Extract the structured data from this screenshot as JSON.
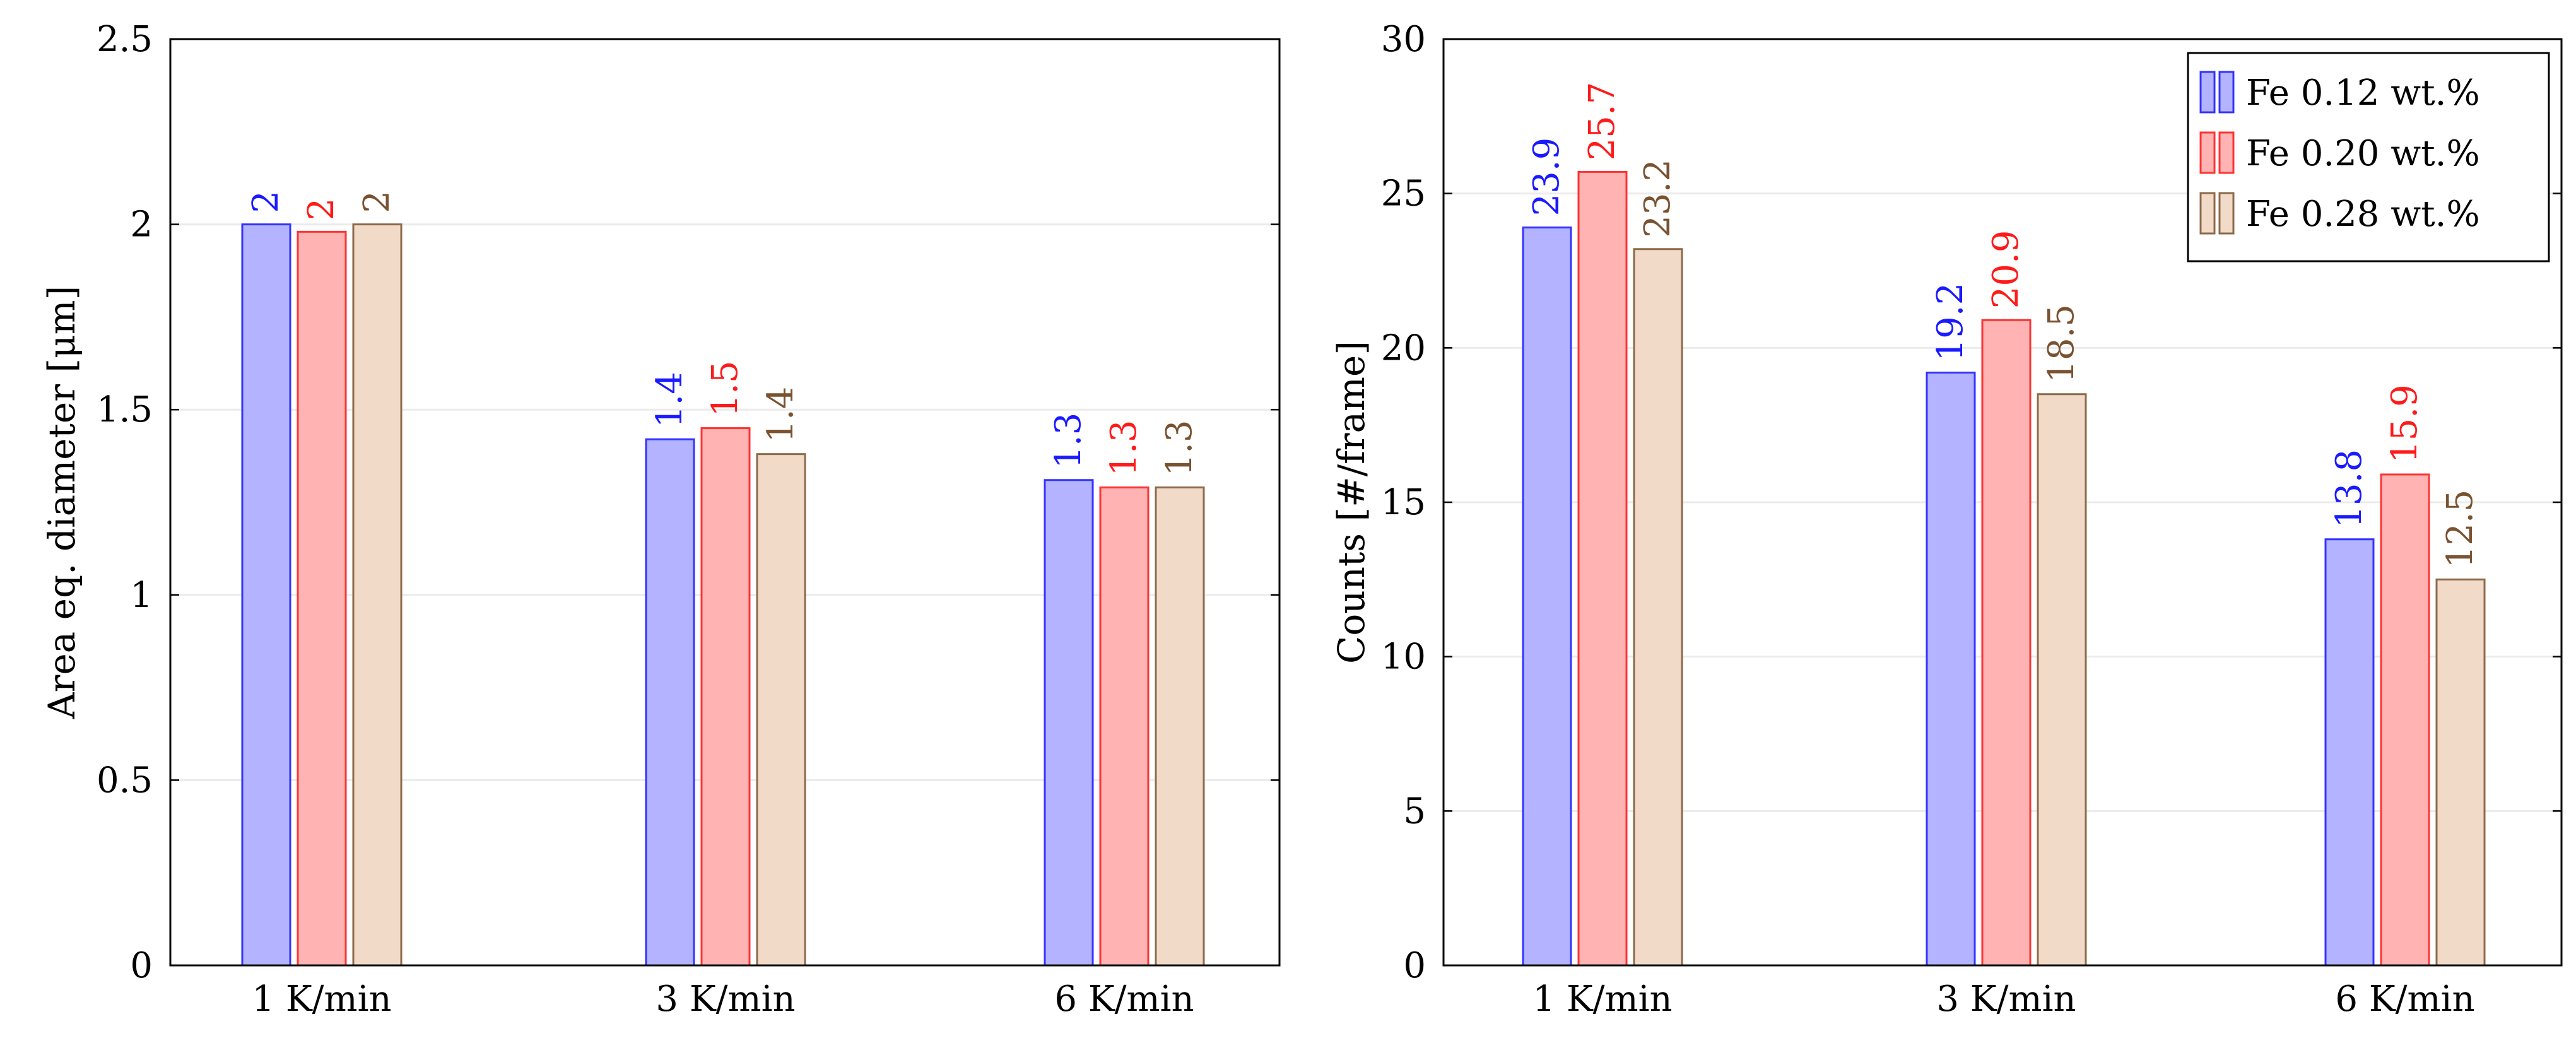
{
  "chart_data": [
    {
      "type": "bar",
      "title": "",
      "xlabel": "",
      "ylabel": "Area eq. diameter [μm]",
      "categories": [
        "1 K/min",
        "3 K/min",
        "6 K/min"
      ],
      "ylim": [
        0,
        2.5
      ],
      "yticks": [
        "0",
        "0.5",
        "1",
        "1.5",
        "2",
        "2.5"
      ],
      "grid": true,
      "legend": false,
      "series": [
        {
          "name": "Fe 0.12 wt.%",
          "values": [
            2.0,
            1.42,
            1.31
          ],
          "labels": [
            "2",
            "1.4",
            "1.3"
          ]
        },
        {
          "name": "Fe 0.20 wt.%",
          "values": [
            1.98,
            1.45,
            1.29
          ],
          "labels": [
            "2",
            "1.5",
            "1.3"
          ]
        },
        {
          "name": "Fe 0.28 wt.%",
          "values": [
            2.0,
            1.38,
            1.29
          ],
          "labels": [
            "2",
            "1.4",
            "1.3"
          ]
        }
      ]
    },
    {
      "type": "bar",
      "title": "",
      "xlabel": "",
      "ylabel": "Counts [#/frame]",
      "categories": [
        "1 K/min",
        "3 K/min",
        "6 K/min"
      ],
      "ylim": [
        0,
        30
      ],
      "yticks": [
        "0",
        "5",
        "10",
        "15",
        "20",
        "25",
        "30"
      ],
      "grid": true,
      "legend": true,
      "legend_position": "top-right",
      "series": [
        {
          "name": "Fe 0.12 wt.%",
          "values": [
            23.9,
            19.2,
            13.8
          ],
          "labels": [
            "23.9",
            "19.2",
            "13.8"
          ]
        },
        {
          "name": "Fe 0.20 wt.%",
          "values": [
            25.7,
            20.9,
            15.9
          ],
          "labels": [
            "25.7",
            "20.9",
            "15.9"
          ]
        },
        {
          "name": "Fe 0.28 wt.%",
          "values": [
            23.2,
            18.5,
            12.5
          ],
          "labels": [
            "23.2",
            "18.5",
            "12.5"
          ]
        }
      ]
    }
  ],
  "colors": {
    "series": [
      {
        "fill": "#b3b3ff",
        "stroke": "#3333ff",
        "text": "#1a1aff"
      },
      {
        "fill": "#ffb3b3",
        "stroke": "#ff3333",
        "text": "#ff1a1a"
      },
      {
        "fill": "#f2dac8",
        "stroke": "#8c6a4a",
        "text": "#7a5230"
      }
    ],
    "grid": "#ebebeb",
    "axis": "#000000"
  }
}
